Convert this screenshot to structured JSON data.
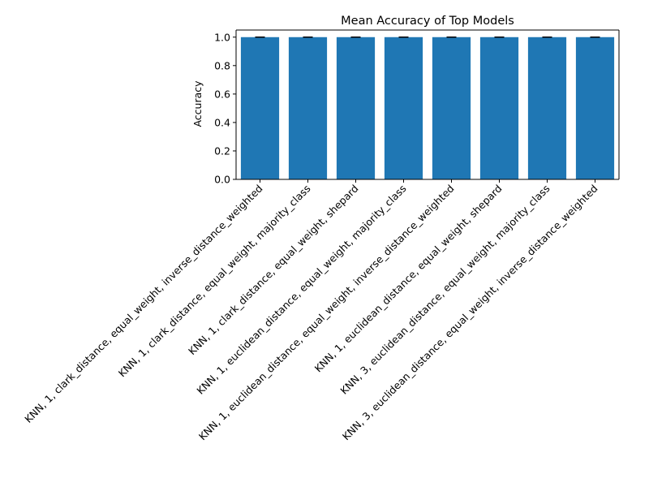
{
  "chart_data": {
    "type": "bar",
    "title": "Mean Accuracy of Top Models",
    "xlabel": "",
    "ylabel": "Accuracy",
    "ylim": [
      0,
      1.05
    ],
    "yticks": [
      0.0,
      0.2,
      0.4,
      0.6,
      0.8,
      1.0
    ],
    "ytick_labels": [
      "0.0",
      "0.2",
      "0.4",
      "0.6",
      "0.8",
      "1.0"
    ],
    "categories": [
      "KNN, 1, clark_distance, equal_weight, inverse_distance_weighted",
      "KNN, 1, clark_distance, equal_weight, majority_class",
      "KNN, 1, clark_distance, equal_weight, shepard",
      "KNN, 1, euclidean_distance, equal_weight, majority_class",
      "KNN, 1, euclidean_distance, equal_weight, inverse_distance_weighted",
      "KNN, 1, euclidean_distance, equal_weight, shepard",
      "KNN, 3, euclidean_distance, equal_weight, majority_class",
      "KNN, 3, euclidean_distance, equal_weight, inverse_distance_weighted"
    ],
    "values": [
      1.0,
      1.0,
      1.0,
      1.0,
      1.0,
      1.0,
      1.0,
      1.0
    ],
    "error": [
      0.0,
      0.0,
      0.0,
      0.0,
      0.0,
      0.0,
      0.0,
      0.0
    ],
    "grid": false,
    "colors": {
      "bar": "#1f77b4",
      "errorbar": "#000000",
      "axis": "#000000"
    }
  }
}
